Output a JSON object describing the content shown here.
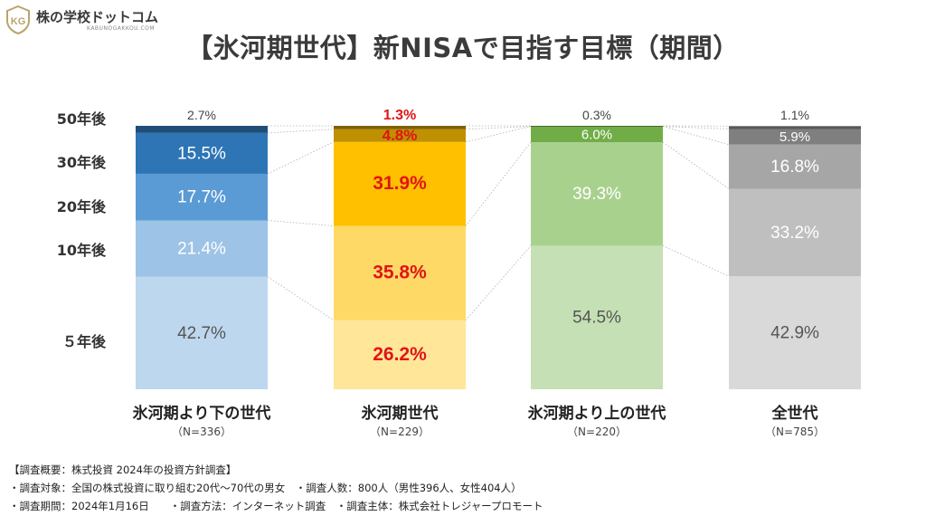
{
  "logo": {
    "name": "株の学校ドットコム",
    "sub": "KABUNOGAKKOU.COM"
  },
  "title": "【氷河期世代】新NISAで目指す目標（期間）",
  "chart_data": {
    "type": "bar",
    "stacked": true,
    "normalized": true,
    "categories": [
      {
        "label": "氷河期より下の世代",
        "n": "（N=336）"
      },
      {
        "label": "氷河期世代",
        "n": "（N=229）"
      },
      {
        "label": "氷河期より上の世代",
        "n": "（N=220）"
      },
      {
        "label": "全世代",
        "n": "（N=785）"
      }
    ],
    "series": [
      {
        "name": "５年後",
        "values": [
          42.7,
          26.2,
          54.5,
          42.9
        ]
      },
      {
        "name": "10年後",
        "values": [
          21.4,
          35.8,
          39.3,
          33.2
        ]
      },
      {
        "name": "20年後",
        "values": [
          17.7,
          31.9,
          6.0,
          16.8
        ]
      },
      {
        "name": "30年後",
        "values": [
          15.5,
          4.8,
          0.0,
          5.9
        ]
      },
      {
        "name": "50年後",
        "values": [
          2.7,
          1.3,
          0.3,
          1.1
        ]
      }
    ],
    "value_labels": [
      [
        "42.7%",
        "21.4%",
        "17.7%",
        "15.5%",
        "2.7%"
      ],
      [
        "26.2%",
        "35.8%",
        "31.9%",
        "4.8%",
        "1.3%"
      ],
      [
        "54.5%",
        "39.3%",
        "6.0%",
        "",
        "0.3%"
      ],
      [
        "42.9%",
        "33.2%",
        "16.8%",
        "5.9%",
        "1.1%"
      ]
    ],
    "colors": [
      [
        "#bdd7ee",
        "#9dc3e6",
        "#5b9bd5",
        "#2e75b6",
        "#1f4e79"
      ],
      [
        "#ffe699",
        "#ffd966",
        "#ffc000",
        "#bf9000",
        "#7f6000"
      ],
      [
        "#c5e0b4",
        "#a9d18e",
        "#70ad47",
        "#548235",
        "#385723"
      ],
      [
        "#d9d9d9",
        "#bfbfbf",
        "#a6a6a6",
        "#7f7f7f",
        "#595959"
      ]
    ],
    "highlight_category": 1,
    "highlight_color": "#e01515",
    "ylim": [
      0,
      100
    ],
    "legend": "left axis labels"
  },
  "notes": [
    "【調査概要：株式投資 2024年の投資方針調査】",
    "・調査対象：全国の株式投資に取り組む20代～70代の男女　・調査人数：800人（男性396人、女性404人）",
    "・調査期間：2024年1月16日　　・調査方法：インターネット調査　・調査主体：株式会社トレジャープロモート"
  ]
}
